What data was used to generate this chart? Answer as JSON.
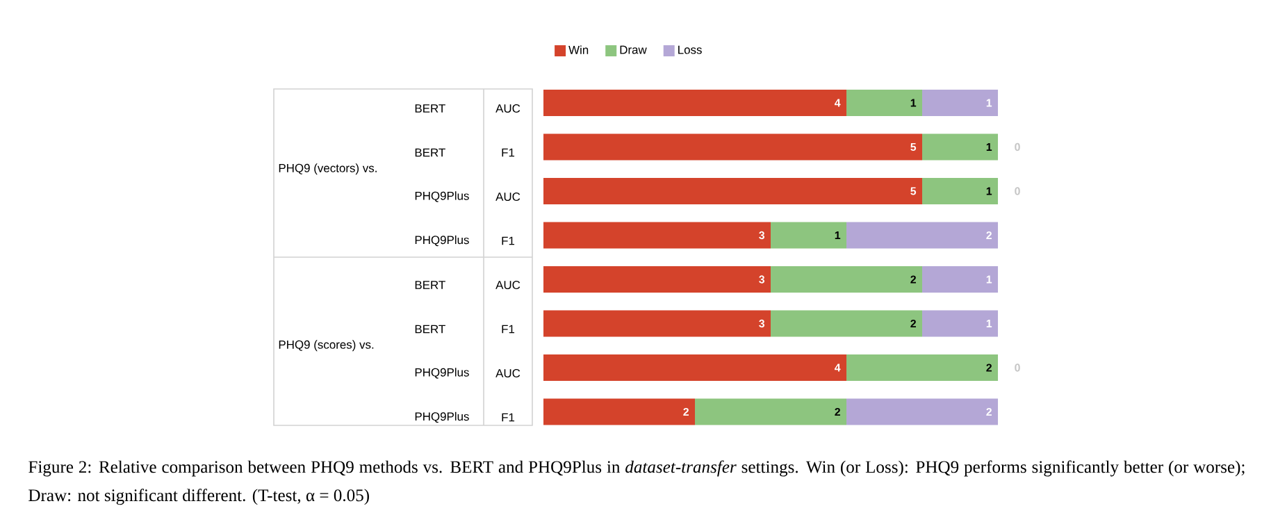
{
  "chart_data": {
    "type": "bar",
    "orientation": "horizontal",
    "stacked": true,
    "data_labels": true,
    "legend": "top",
    "categories": [
      "BERT",
      "BERT",
      "PHQ9Plus",
      "PHQ9Plus",
      "BERT",
      "BERT",
      "PHQ9Plus",
      "PHQ9Plus"
    ],
    "series": [
      {
        "name": "Win",
        "color": "#d4432b",
        "values": [
          4,
          5,
          5,
          3,
          3,
          3,
          4,
          2
        ]
      },
      {
        "name": "Draw",
        "color": "#8dc57f",
        "values": [
          1,
          1,
          1,
          1,
          2,
          2,
          2,
          2
        ]
      },
      {
        "name": "Loss",
        "color": "#b4a7d6",
        "values": [
          1,
          0,
          0,
          2,
          1,
          1,
          0,
          2
        ]
      }
    ],
    "annotations": [
      "PHQ9 (vectors) vs.",
      "PHQ9 (scores) vs.",
      "AUC",
      "F1",
      "AUC",
      "F1",
      "AUC",
      "F1",
      "AUC",
      "F1",
      "Figure 2: Relative comparison between PHQ9 methods vs. BERT and PHQ9Plus in *dataset-transfer* settings. Win (or Loss): PHQ9 performs significantly better (or worse); Draw: not significant different. (T-test, α = 0.05)"
    ]
  }
}
